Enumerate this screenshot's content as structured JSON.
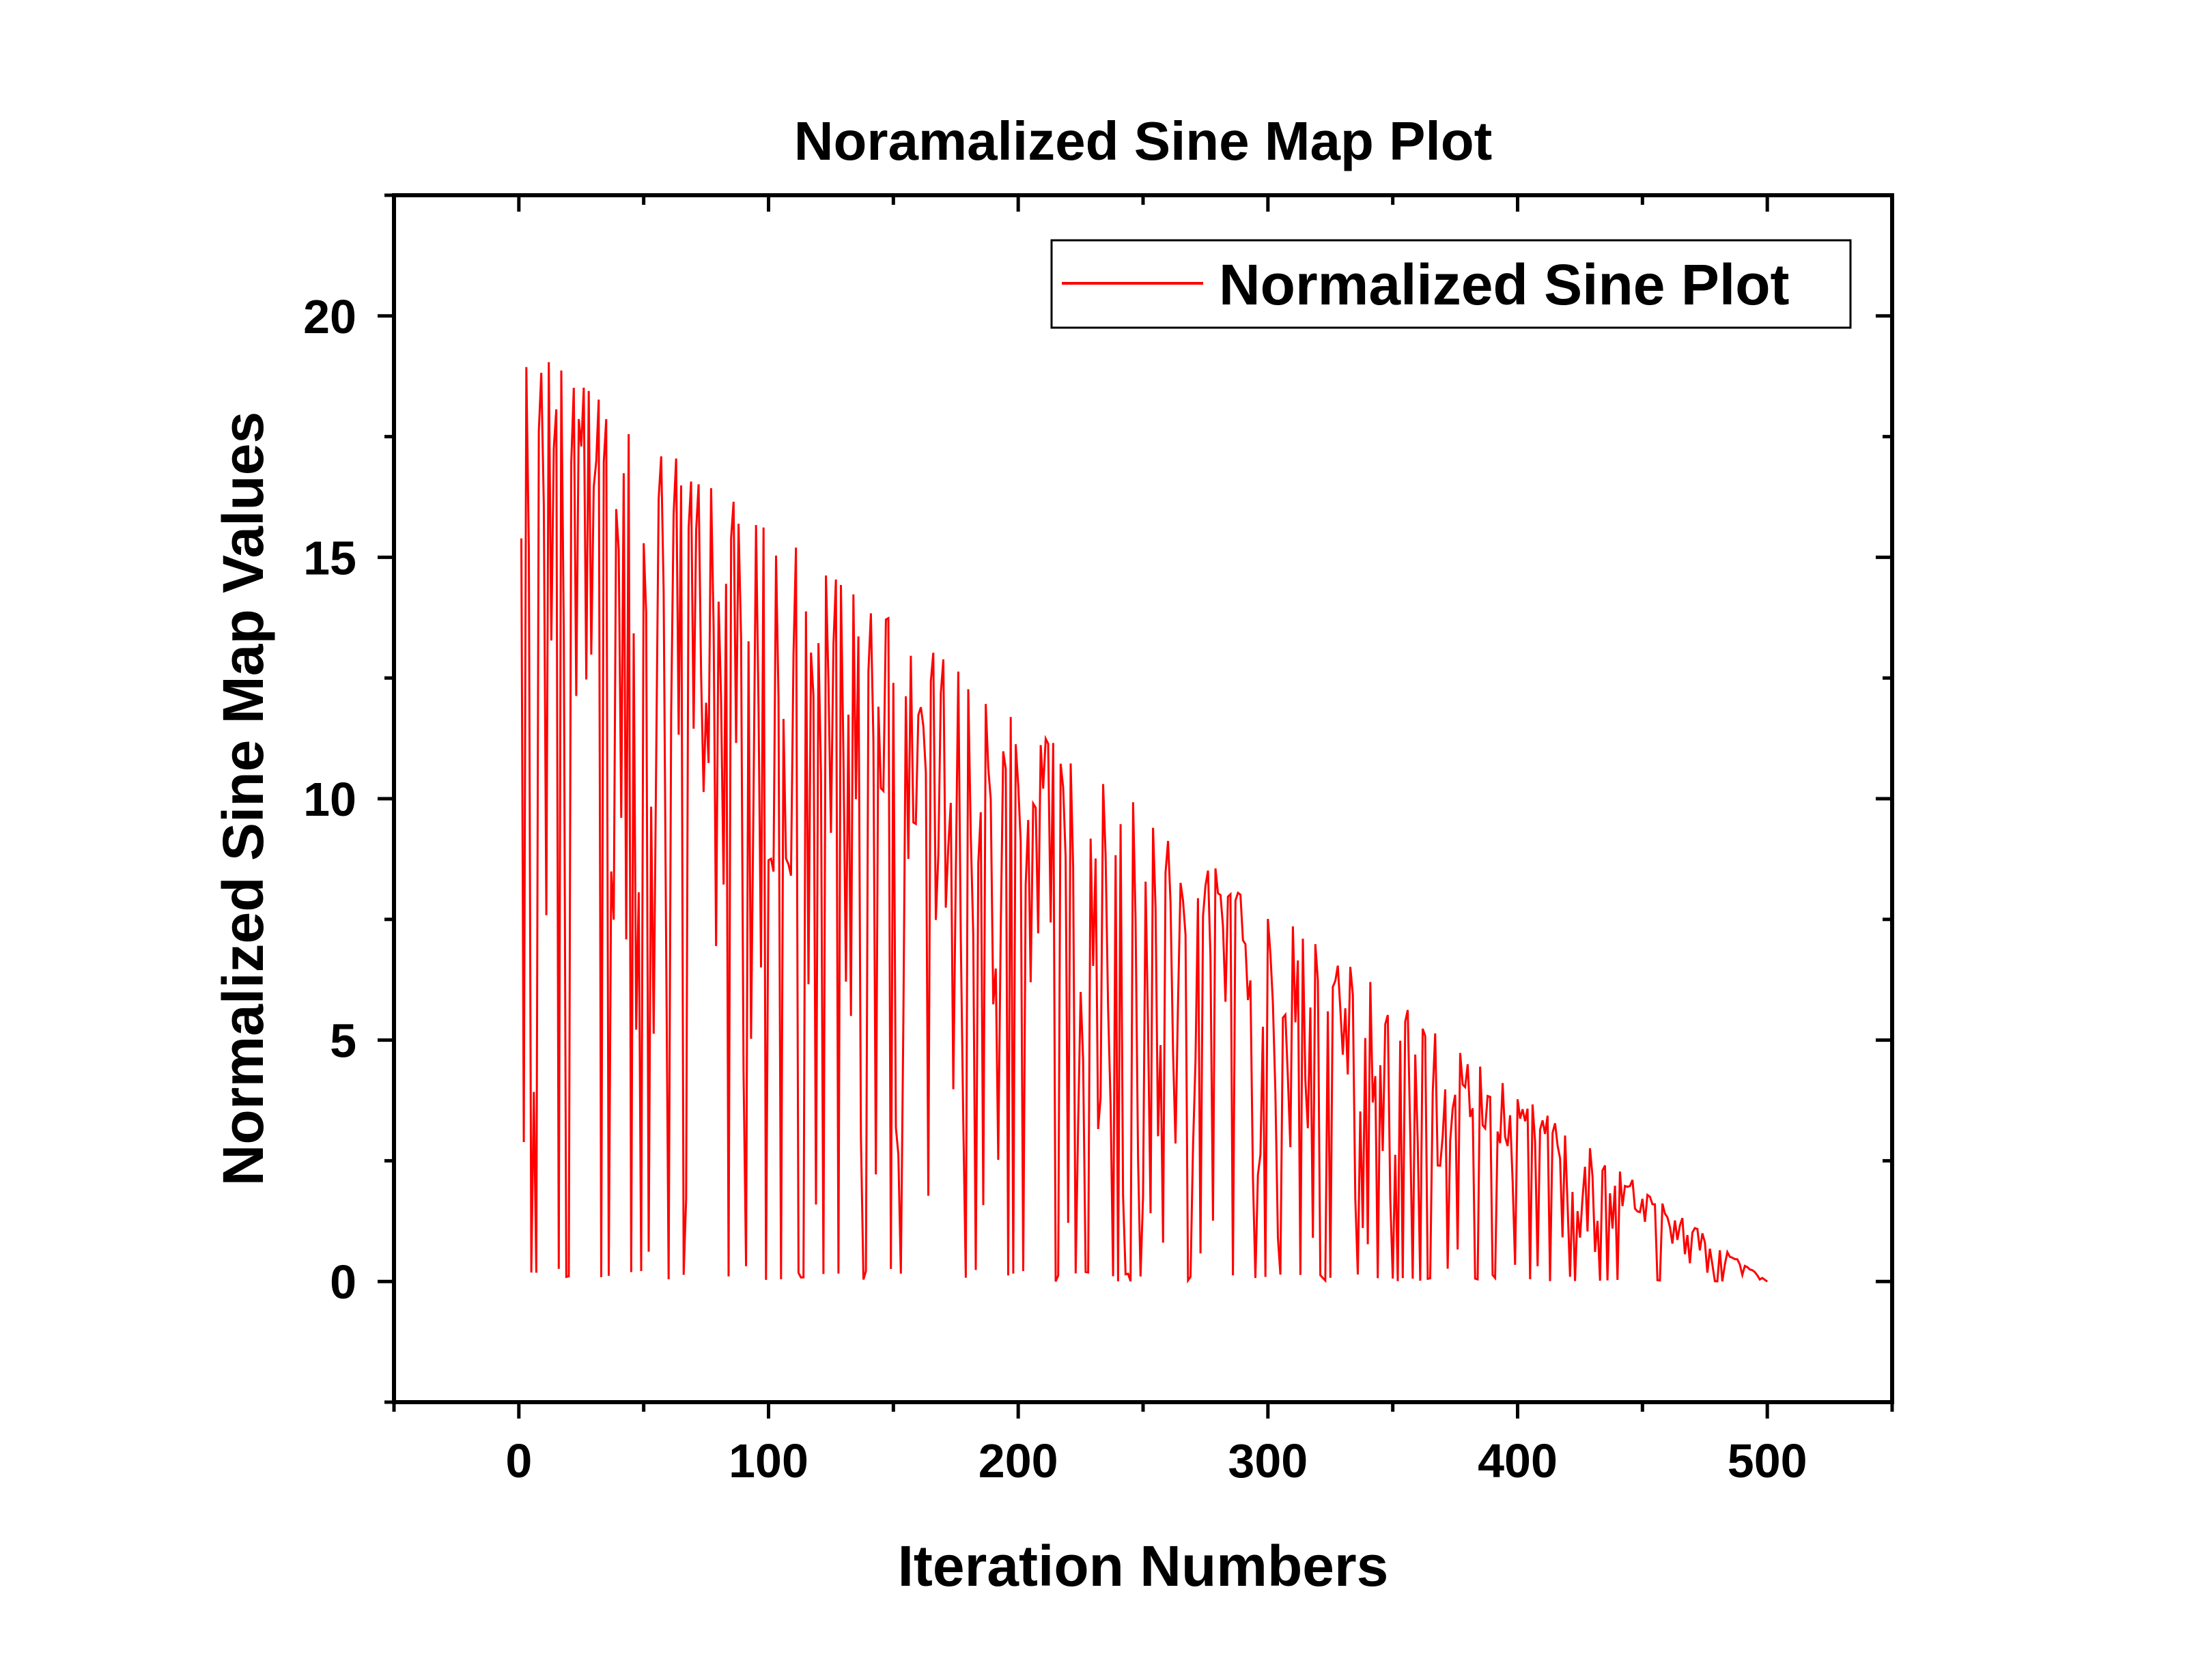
{
  "chart_data": {
    "type": "line",
    "title": "Noramalized Sine Map Plot",
    "xlabel": "Iteration Numbers",
    "ylabel": "Normalized Sine Map Values",
    "xlim": [
      -50,
      550
    ],
    "ylim": [
      -2.5,
      22.5
    ],
    "xticks": [
      0,
      100,
      200,
      300,
      400,
      500
    ],
    "xtick_labels": [
      "0",
      "100",
      "200",
      "300",
      "400",
      "500"
    ],
    "yticks": [
      0,
      5,
      10,
      15,
      20
    ],
    "ytick_labels": [
      "0",
      "5",
      "10",
      "15",
      "20"
    ],
    "grid": false,
    "legend_position": "top-right",
    "series": [
      {
        "name": "Normalized Sine Plot",
        "color": "#ff0000",
        "envelope_start": 19.5,
        "envelope_end": 0,
        "x_start": 1,
        "x_end": 500,
        "description": "chaotic oscillation between 0 and a linearly decreasing envelope"
      }
    ]
  },
  "colors": {
    "line": "#ff0000",
    "axis": "#000000",
    "background": "#ffffff"
  }
}
